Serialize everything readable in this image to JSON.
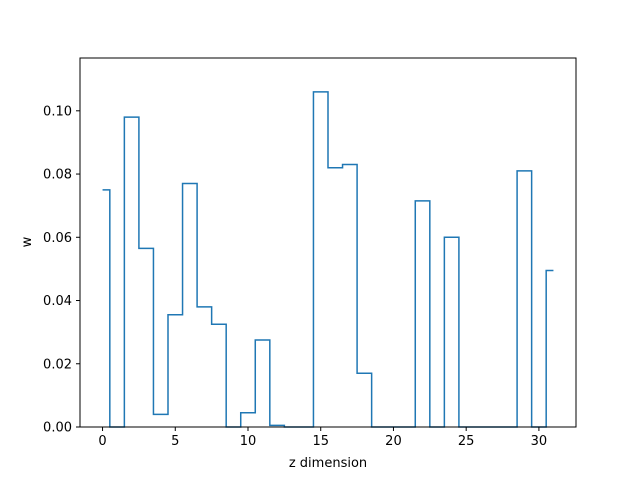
{
  "chart_data": {
    "type": "line",
    "drawstyle": "steps-mid",
    "title": "",
    "xlabel": "z dimension",
    "ylabel": "w",
    "xlim": [
      -1.55,
      32.55
    ],
    "ylim": [
      0,
      0.1167
    ],
    "xticks": [
      0,
      5,
      10,
      15,
      20,
      25,
      30
    ],
    "xtick_labels": [
      "0",
      "5",
      "10",
      "15",
      "20",
      "25",
      "30"
    ],
    "yticks": [
      0.0,
      0.02,
      0.04,
      0.06,
      0.08,
      0.1
    ],
    "ytick_labels": [
      "0.00",
      "0.02",
      "0.04",
      "0.06",
      "0.08",
      "0.10"
    ],
    "grid": false,
    "series": [
      {
        "color": "#1f77b4",
        "x": [
          0,
          1,
          2,
          3,
          4,
          5,
          6,
          7,
          8,
          9,
          10,
          11,
          12,
          13,
          14,
          15,
          16,
          17,
          18,
          19,
          20,
          21,
          22,
          23,
          24,
          25,
          26,
          27,
          28,
          29,
          30,
          31
        ],
        "values": [
          0.075,
          0.0,
          0.098,
          0.0565,
          0.004,
          0.0355,
          0.077,
          0.038,
          0.0325,
          0.0,
          0.0045,
          0.0275,
          0.0005,
          0.0,
          0.0,
          0.106,
          0.082,
          0.083,
          0.017,
          0.0,
          0.0,
          0.0,
          0.0715,
          0.0,
          0.06,
          0.0,
          0.0,
          0.0,
          0.0,
          0.081,
          0.0,
          0.0495
        ]
      }
    ]
  }
}
